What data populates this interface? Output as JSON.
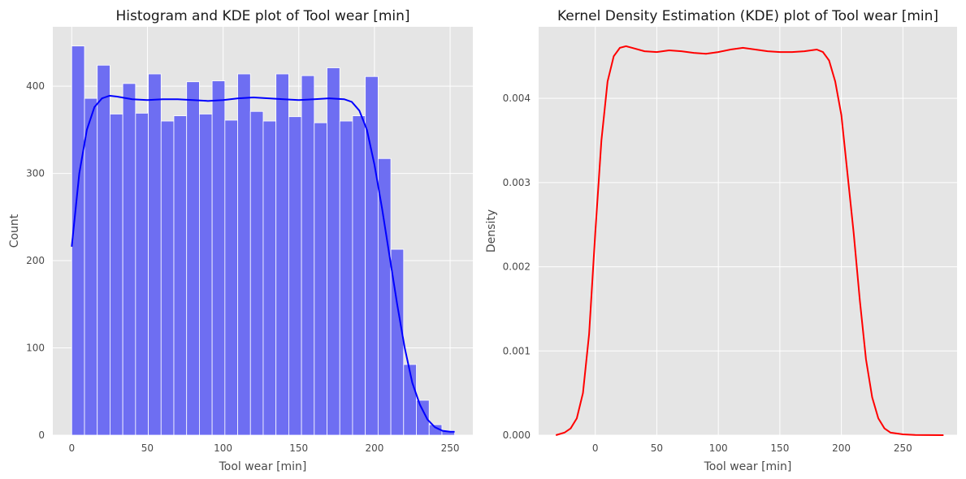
{
  "chart_data": [
    {
      "type": "bar",
      "title": "Histogram and KDE plot of Tool wear [min]",
      "xlabel": "Tool wear [min]",
      "ylabel": "Count",
      "xlim": [
        -12.5,
        265
      ],
      "ylim": [
        0,
        468
      ],
      "xticks": [
        0,
        50,
        100,
        150,
        200,
        250
      ],
      "yticks": [
        0,
        100,
        200,
        300,
        400
      ],
      "grid": true,
      "bar_color": "#6e6ef2",
      "bar_edge_color": "#ffffff",
      "bins": {
        "start": 0,
        "width": 8.4333,
        "counts": [
          446,
          386,
          424,
          368,
          403,
          369,
          414,
          360,
          366,
          405,
          368,
          406,
          361,
          414,
          371,
          360,
          414,
          365,
          412,
          358,
          421,
          360,
          366,
          411,
          317,
          213,
          81,
          40,
          12,
          5
        ]
      },
      "kde_color": "#0000ff",
      "kde": {
        "x": [
          0,
          5,
          10,
          15,
          20,
          25,
          30,
          40,
          50,
          60,
          70,
          80,
          90,
          100,
          110,
          120,
          130,
          140,
          150,
          160,
          170,
          180,
          185,
          190,
          195,
          200,
          205,
          210,
          215,
          220,
          225,
          230,
          235,
          240,
          245,
          250,
          253
        ],
        "y": [
          216,
          300,
          350,
          376,
          386,
          389,
          388,
          385,
          384,
          385,
          385,
          384,
          383,
          384,
          386,
          387,
          386,
          385,
          384,
          385,
          386,
          385,
          382,
          372,
          350,
          310,
          260,
          205,
          150,
          100,
          60,
          35,
          18,
          9,
          5,
          4,
          4
        ]
      }
    },
    {
      "type": "line",
      "title": "Kernel Density Estimation (KDE) plot of Tool wear [min]",
      "xlabel": "Tool wear [min]",
      "ylabel": "Density",
      "xlim": [
        -46,
        294
      ],
      "ylim": [
        0,
        0.00485
      ],
      "xticks": [
        0,
        50,
        100,
        150,
        200,
        250
      ],
      "yticks": [
        "0.000",
        "0.001",
        "0.002",
        "0.003",
        "0.004"
      ],
      "grid": true,
      "line_color": "#ff0000",
      "x": [
        -32,
        -25,
        -20,
        -15,
        -10,
        -5,
        0,
        5,
        10,
        15,
        20,
        25,
        30,
        40,
        50,
        60,
        70,
        80,
        90,
        100,
        110,
        120,
        130,
        140,
        150,
        160,
        170,
        180,
        185,
        190,
        195,
        200,
        205,
        210,
        215,
        220,
        225,
        230,
        235,
        240,
        250,
        260,
        270,
        283
      ],
      "y": [
        0.0,
        3e-05,
        8e-05,
        0.0002,
        0.0005,
        0.0012,
        0.0024,
        0.0035,
        0.0042,
        0.0045,
        0.0046,
        0.00462,
        0.0046,
        0.00456,
        0.00455,
        0.00457,
        0.00456,
        0.00454,
        0.00453,
        0.00455,
        0.00458,
        0.0046,
        0.00458,
        0.00456,
        0.00455,
        0.00455,
        0.00456,
        0.00458,
        0.00455,
        0.00445,
        0.0042,
        0.0038,
        0.0031,
        0.0024,
        0.0016,
        0.0009,
        0.00045,
        0.0002,
        8e-05,
        3e-05,
        1e-05,
        3e-06,
        1e-06,
        0.0
      ]
    }
  ]
}
